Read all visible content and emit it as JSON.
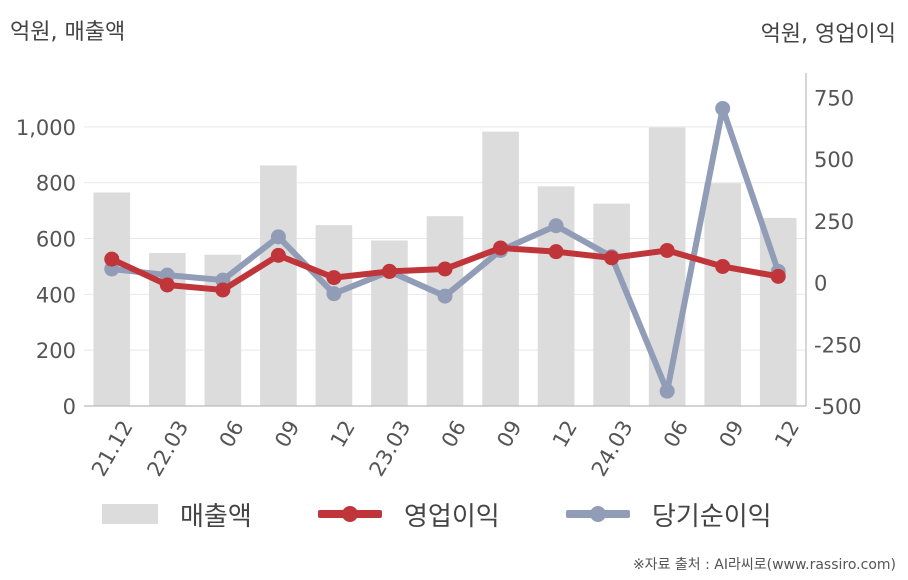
{
  "units": {
    "left": "억원, 매출액",
    "right": "억원, 영업이익"
  },
  "source": "※자료 출처 : AI라씨로(www.rassiro.com)",
  "colors": {
    "bar": "#dcdcdc",
    "operating": "#c0353a",
    "net": "#919cb6",
    "grid": "#e8e8e8",
    "axis": "#bbbbbb"
  },
  "chart_data": {
    "type": "bar+line",
    "categories": [
      "21.12",
      "22.03",
      "06",
      "09",
      "12",
      "23.03",
      "06",
      "09",
      "12",
      "24.03",
      "06",
      "09",
      "12"
    ],
    "left_axis": {
      "range": [
        0,
        1150
      ],
      "ticks": [
        "0",
        "200",
        "400",
        "600",
        "800",
        "1,000"
      ],
      "tick_values": [
        0,
        200,
        400,
        600,
        800,
        1000
      ]
    },
    "right_axis": {
      "range": [
        -500,
        800
      ],
      "ticks": [
        "-500",
        "-250",
        "0",
        "250",
        "500",
        "750"
      ],
      "tick_values": [
        -500,
        -250,
        0,
        250,
        500,
        750
      ]
    },
    "grid": true,
    "legend_position": "bottom",
    "series": [
      {
        "name": "매출액",
        "type": "bar",
        "axis": "left",
        "values": [
          765,
          548,
          542,
          862,
          648,
          593,
          680,
          983,
          787,
          725,
          998,
          798,
          674
        ]
      },
      {
        "name": "영업이익",
        "type": "line",
        "axis": "right",
        "values": [
          95,
          -10,
          -30,
          110,
          20,
          45,
          55,
          140,
          125,
          100,
          130,
          65,
          25
        ]
      },
      {
        "name": "당기순이익",
        "type": "line",
        "axis": "right",
        "values": [
          55,
          30,
          10,
          185,
          -45,
          45,
          -55,
          130,
          230,
          105,
          -440,
          705,
          45
        ]
      }
    ]
  }
}
